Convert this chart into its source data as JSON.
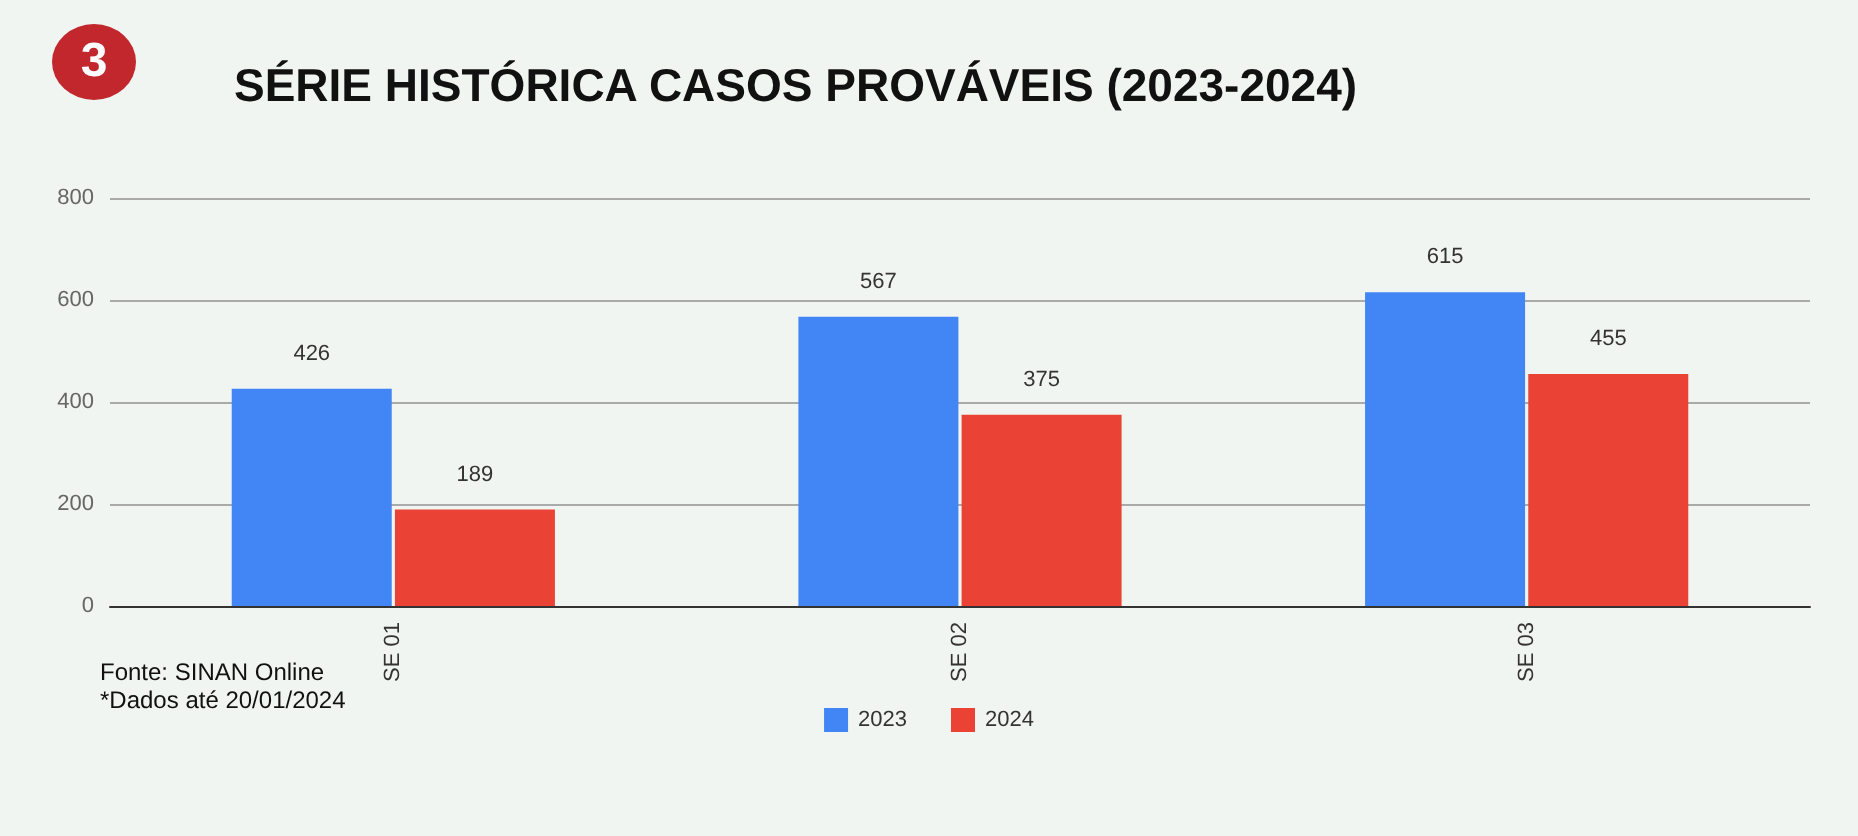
{
  "chart_data": {
    "type": "bar",
    "title": "SÉRIE HISTÓRICA CASOS PROVÁVEIS (2023-2024)",
    "categories": [
      "SE 01",
      "SE 02",
      "SE 03"
    ],
    "series": [
      {
        "name": "2023",
        "color": "#4285f4",
        "values": [
          426,
          567,
          615
        ]
      },
      {
        "name": "2024",
        "color": "#ea4335",
        "values": [
          189,
          375,
          455
        ]
      }
    ],
    "ylim": [
      0,
      800
    ],
    "yticks": [
      0,
      200,
      400,
      600,
      800
    ],
    "grid": "y",
    "legend": "bottom",
    "data_labels": true,
    "annotations": [
      "3",
      "Fonte: SINAN Online",
      "*Dados até 20/01/2024"
    ]
  }
}
